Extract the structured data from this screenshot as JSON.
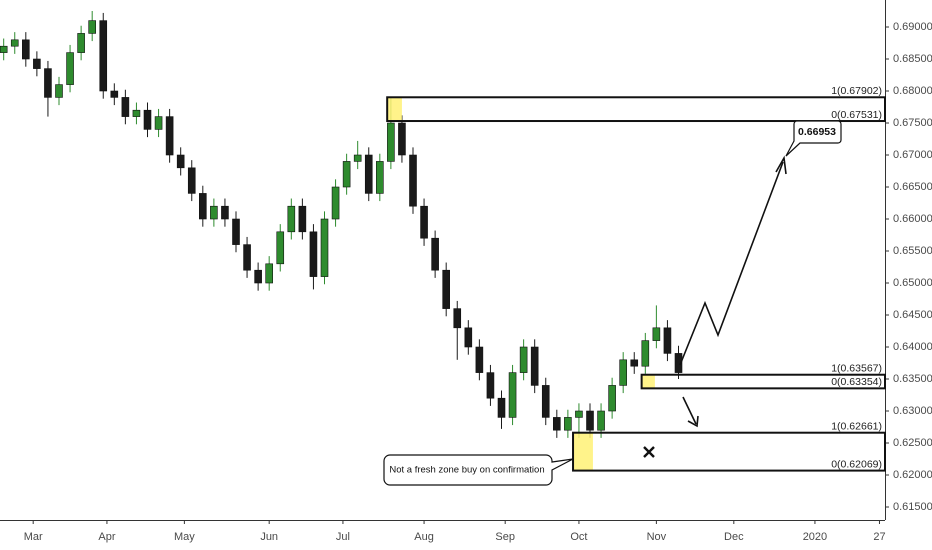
{
  "chart_data": {
    "type": "candlestick",
    "x": [
      1,
      4,
      7,
      10,
      13,
      16,
      19,
      22,
      25,
      28,
      31,
      34,
      37,
      40,
      43,
      46,
      49,
      52,
      55,
      58,
      61,
      64,
      67,
      70,
      73,
      76,
      79,
      82,
      85,
      88,
      91,
      94,
      97,
      100,
      103,
      106,
      109,
      112,
      115,
      118,
      121,
      124,
      127,
      130,
      133,
      136,
      139,
      142,
      145,
      148,
      151,
      154,
      157,
      160,
      163,
      166,
      169,
      172,
      175,
      178,
      181,
      184
    ],
    "open": [
      0.686,
      0.687,
      0.688,
      0.685,
      0.6835,
      0.679,
      0.681,
      0.686,
      0.689,
      0.691,
      0.68,
      0.679,
      0.676,
      0.677,
      0.674,
      0.676,
      0.67,
      0.668,
      0.664,
      0.66,
      0.662,
      0.66,
      0.656,
      0.652,
      0.65,
      0.653,
      0.658,
      0.662,
      0.658,
      0.651,
      0.66,
      0.665,
      0.669,
      0.67,
      0.664,
      0.669,
      0.675,
      0.67,
      0.662,
      0.657,
      0.652,
      0.646,
      0.643,
      0.64,
      0.636,
      0.632,
      0.629,
      0.636,
      0.64,
      0.634,
      0.629,
      0.627,
      0.629,
      0.63,
      0.627,
      0.63,
      0.634,
      0.638,
      0.637,
      0.641,
      0.643,
      0.639
    ],
    "high": [
      0.6882,
      0.6892,
      0.6892,
      0.6862,
      0.6847,
      0.6822,
      0.6872,
      0.6902,
      0.6925,
      0.6922,
      0.6812,
      0.6802,
      0.6782,
      0.6782,
      0.6772,
      0.6772,
      0.6712,
      0.6692,
      0.6652,
      0.6632,
      0.6632,
      0.6612,
      0.6572,
      0.6532,
      0.6542,
      0.6592,
      0.6632,
      0.6632,
      0.6592,
      0.6612,
      0.6662,
      0.6702,
      0.6722,
      0.6712,
      0.6702,
      0.679,
      0.6762,
      0.6712,
      0.6632,
      0.6582,
      0.6532,
      0.6472,
      0.6442,
      0.6412,
      0.6372,
      0.6332,
      0.6372,
      0.6412,
      0.6412,
      0.6352,
      0.6302,
      0.6302,
      0.6312,
      0.6312,
      0.6312,
      0.6352,
      0.6392,
      0.6392,
      0.6422,
      0.6465,
      0.6442,
      0.6402
    ],
    "low": [
      0.6848,
      0.6858,
      0.6838,
      0.6823,
      0.676,
      0.6778,
      0.6798,
      0.6848,
      0.6878,
      0.6788,
      0.6778,
      0.6748,
      0.6748,
      0.6728,
      0.6728,
      0.6688,
      0.6668,
      0.6628,
      0.6588,
      0.6588,
      0.6588,
      0.6548,
      0.6508,
      0.6488,
      0.6488,
      0.6518,
      0.6568,
      0.6568,
      0.649,
      0.6498,
      0.6588,
      0.6638,
      0.6678,
      0.6628,
      0.6628,
      0.6678,
      0.6688,
      0.6608,
      0.6558,
      0.6508,
      0.6448,
      0.638,
      0.6388,
      0.6348,
      0.6308,
      0.6272,
      0.6278,
      0.6348,
      0.6328,
      0.6278,
      0.6258,
      0.6258,
      0.6258,
      0.6258,
      0.6258,
      0.6288,
      0.6328,
      0.6358,
      0.6358,
      0.6398,
      0.6378,
      0.635
    ],
    "close": [
      0.687,
      0.688,
      0.685,
      0.6835,
      0.679,
      0.681,
      0.686,
      0.689,
      0.691,
      0.68,
      0.679,
      0.676,
      0.677,
      0.674,
      0.676,
      0.67,
      0.668,
      0.664,
      0.66,
      0.662,
      0.66,
      0.656,
      0.652,
      0.65,
      0.653,
      0.658,
      0.662,
      0.658,
      0.651,
      0.66,
      0.665,
      0.669,
      0.67,
      0.664,
      0.669,
      0.675,
      0.67,
      0.662,
      0.657,
      0.652,
      0.646,
      0.643,
      0.64,
      0.636,
      0.632,
      0.629,
      0.636,
      0.64,
      0.634,
      0.629,
      0.627,
      0.629,
      0.63,
      0.627,
      0.63,
      0.634,
      0.638,
      0.637,
      0.641,
      0.643,
      0.639,
      0.636
    ],
    "up_color": "#2e8b2e",
    "down_color": "#1a1a1a",
    "xlim": [
      0,
      240
    ],
    "xticks": [
      {
        "value": 9,
        "label": "Mar"
      },
      {
        "value": 29,
        "label": "Apr"
      },
      {
        "value": 50,
        "label": "May"
      },
      {
        "value": 73,
        "label": "Jun"
      },
      {
        "value": 93,
        "label": "Jul"
      },
      {
        "value": 115,
        "label": "Aug"
      },
      {
        "value": 137,
        "label": "Sep"
      },
      {
        "value": 157,
        "label": "Oct"
      },
      {
        "value": 178,
        "label": "Nov"
      },
      {
        "value": 199,
        "label": "Dec"
      },
      {
        "value": 221,
        "label": "2020"
      },
      {
        "value": 238.5,
        "label": "27"
      }
    ],
    "ylim": [
      0.61297,
      0.69422
    ],
    "yticks": [
      {
        "value": 0.615,
        "label": "0.61500"
      },
      {
        "value": 0.62,
        "label": "0.62000"
      },
      {
        "value": 0.625,
        "label": "0.62500"
      },
      {
        "value": 0.63,
        "label": "0.63000"
      },
      {
        "value": 0.635,
        "label": "0.63500"
      },
      {
        "value": 0.64,
        "label": "0.64000"
      },
      {
        "value": 0.645,
        "label": "0.64500"
      },
      {
        "value": 0.65,
        "label": "0.65000"
      },
      {
        "value": 0.655,
        "label": "0.65500"
      },
      {
        "value": 0.66,
        "label": "0.66000"
      },
      {
        "value": 0.665,
        "label": "0.66500"
      },
      {
        "value": 0.67,
        "label": "0.67000"
      },
      {
        "value": 0.675,
        "label": "0.67500"
      },
      {
        "value": 0.68,
        "label": "0.68000"
      },
      {
        "value": 0.685,
        "label": "0.68500"
      },
      {
        "value": 0.69,
        "label": "0.69000"
      }
    ],
    "grid": false,
    "zones": [
      {
        "start": 105,
        "highlight_end": 109,
        "top": {
          "value": 0.67902,
          "label": "1(0.67902)"
        },
        "bottom": {
          "value": 0.67531,
          "label": "0(0.67531)"
        }
      },
      {
        "start": 174,
        "highlight_end": 177.6,
        "top": {
          "value": 0.63567,
          "label": "1(0.63567)"
        },
        "bottom": {
          "value": 0.63354,
          "label": "0(0.63354)"
        }
      },
      {
        "start": 155.4,
        "highlight_end": 160.8,
        "top": {
          "value": 0.62661,
          "label": "1(0.62661)"
        },
        "bottom": {
          "value": 0.62069,
          "label": "0(0.62069)"
        }
      }
    ],
    "zone_color": "#fff176",
    "target_label": "0.66953",
    "note": "Not a fresh zone buy on confirmation"
  }
}
